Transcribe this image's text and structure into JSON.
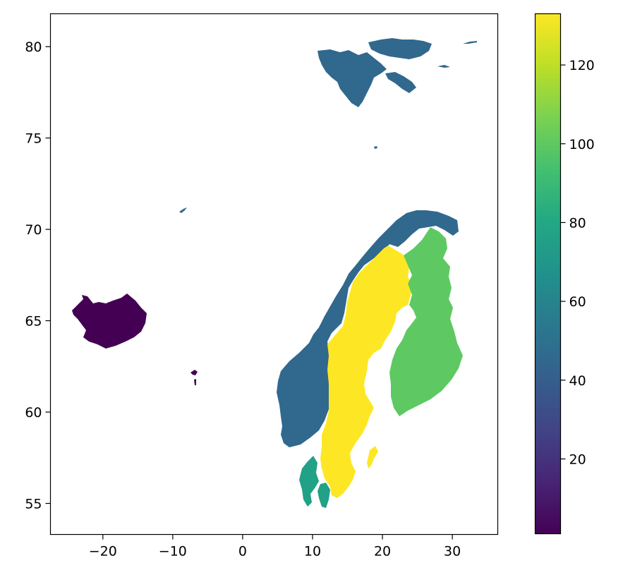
{
  "chart_data": {
    "type": "choropleth",
    "title": "",
    "xlabel": "",
    "ylabel": "",
    "xlim": [
      -27.5,
      36.5
    ],
    "ylim": [
      53.3,
      81.8
    ],
    "x_ticks": [
      -20,
      -10,
      0,
      10,
      20,
      30
    ],
    "x_tick_labels": [
      "−20",
      "−10",
      "0",
      "10",
      "20",
      "30"
    ],
    "y_ticks": [
      55,
      60,
      65,
      70,
      75,
      80
    ],
    "y_tick_labels": [
      "55",
      "60",
      "65",
      "70",
      "75",
      "80"
    ],
    "colorbar": {
      "colormap": "viridis",
      "range": [
        1,
        133
      ],
      "ticks": [
        20,
        40,
        60,
        80,
        100,
        120
      ],
      "tick_labels": [
        "20",
        "40",
        "60",
        "80",
        "100",
        "120"
      ]
    },
    "regions": [
      {
        "region": "iceland",
        "value": 1,
        "color": "#440154"
      },
      {
        "region": "norway",
        "value": 45,
        "color": "#31688e"
      },
      {
        "region": "denmark",
        "value": 70,
        "color": "#21a185"
      },
      {
        "region": "finland",
        "value": 105,
        "color": "#5ec962"
      },
      {
        "region": "sweden",
        "value": 133,
        "color": "#fde725"
      }
    ],
    "grid": false
  }
}
